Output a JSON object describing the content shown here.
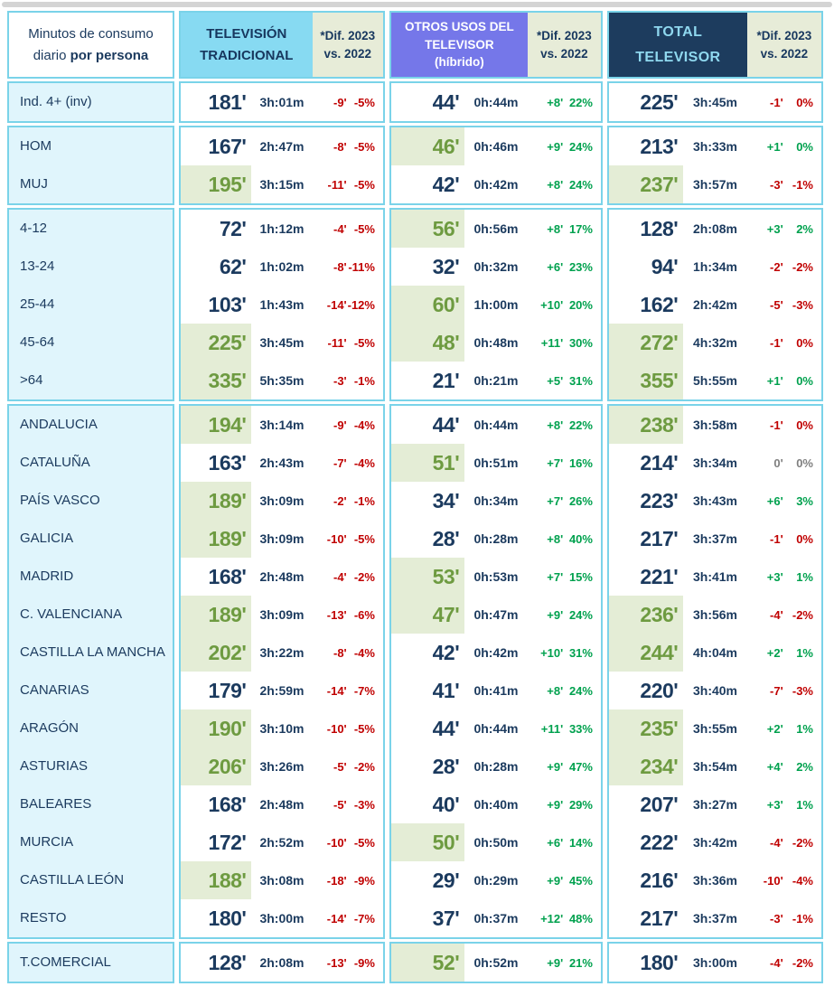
{
  "colors": {
    "border": "#7AD3E9",
    "tv_header_bg": "#87DAF2",
    "otros_header_bg": "#7577E9",
    "total_header_bg": "#1D3C5E",
    "total_header_text": "#8FD8EF",
    "dif_header_bg": "#E7ECD8",
    "label_column_bg": "#E0F5FC",
    "highlight_bg": "#E4EDD6",
    "highlight_text": "#6E9B41",
    "navy_text": "#1B3A5E",
    "negative": "#C00000",
    "positive": "#00A14E",
    "neutral": "#7F7F7F"
  },
  "header": {
    "label_line1": "Minutos de consumo",
    "label_line2_normal": "diario",
    "label_line2_bold": "por persona",
    "tv_line1": "TELEVISIÓN",
    "tv_line2": "TRADICIONAL",
    "otros_line1": "OTROS USOS DEL",
    "otros_line2": "TELEVISOR",
    "otros_line3": "(híbrido)",
    "total_line1": "TOTAL",
    "total_line2": "TELEVISOR",
    "dif_line1": "*Dif. 2023",
    "dif_line2": "vs. 2022"
  },
  "chart_data": {
    "type": "table",
    "title": "Minutos de consumo diario por persona",
    "columns": [
      "TELEVISIÓN TRADICIONAL",
      "*Dif. 2023 vs. 2022",
      "OTROS USOS DEL TELEVISOR (híbrido)",
      "*Dif. 2023 vs. 2022",
      "TOTAL TELEVISOR",
      "*Dif. 2023 vs. 2022"
    ],
    "row_groups": [
      {
        "rows": [
          {
            "label": "Ind. 4+ (inv)",
            "tv": {
              "min": "181'",
              "time": "3h:01m",
              "dif": "-9'",
              "pct": "-5%",
              "hl": false,
              "trend": "down"
            },
            "otros": {
              "min": "44'",
              "time": "0h:44m",
              "dif": "+8'",
              "pct": "22%",
              "hl": false,
              "trend": "up"
            },
            "total": {
              "min": "225'",
              "time": "3h:45m",
              "dif": "-1'",
              "pct": "0%",
              "hl": false,
              "trend": "down"
            }
          }
        ]
      },
      {
        "rows": [
          {
            "label": "HOM",
            "tv": {
              "min": "167'",
              "time": "2h:47m",
              "dif": "-8'",
              "pct": "-5%",
              "hl": false,
              "trend": "down"
            },
            "otros": {
              "min": "46'",
              "time": "0h:46m",
              "dif": "+9'",
              "pct": "24%",
              "hl": true,
              "trend": "up"
            },
            "total": {
              "min": "213'",
              "time": "3h:33m",
              "dif": "+1'",
              "pct": "0%",
              "hl": false,
              "trend": "up"
            }
          },
          {
            "label": "MUJ",
            "tv": {
              "min": "195'",
              "time": "3h:15m",
              "dif": "-11'",
              "pct": "-5%",
              "hl": true,
              "trend": "down"
            },
            "otros": {
              "min": "42'",
              "time": "0h:42m",
              "dif": "+8'",
              "pct": "24%",
              "hl": false,
              "trend": "up"
            },
            "total": {
              "min": "237'",
              "time": "3h:57m",
              "dif": "-3'",
              "pct": "-1%",
              "hl": true,
              "trend": "down"
            }
          }
        ]
      },
      {
        "rows": [
          {
            "label": "4-12",
            "tv": {
              "min": "72'",
              "time": "1h:12m",
              "dif": "-4'",
              "pct": "-5%",
              "hl": false,
              "trend": "down"
            },
            "otros": {
              "min": "56'",
              "time": "0h:56m",
              "dif": "+8'",
              "pct": "17%",
              "hl": true,
              "trend": "up"
            },
            "total": {
              "min": "128'",
              "time": "2h:08m",
              "dif": "+3'",
              "pct": "2%",
              "hl": false,
              "trend": "up"
            }
          },
          {
            "label": "13-24",
            "tv": {
              "min": "62'",
              "time": "1h:02m",
              "dif": "-8'",
              "pct": "-11%",
              "hl": false,
              "trend": "down"
            },
            "otros": {
              "min": "32'",
              "time": "0h:32m",
              "dif": "+6'",
              "pct": "23%",
              "hl": false,
              "trend": "up"
            },
            "total": {
              "min": "94'",
              "time": "1h:34m",
              "dif": "-2'",
              "pct": "-2%",
              "hl": false,
              "trend": "down"
            }
          },
          {
            "label": "25-44",
            "tv": {
              "min": "103'",
              "time": "1h:43m",
              "dif": "-14'",
              "pct": "-12%",
              "hl": false,
              "trend": "down"
            },
            "otros": {
              "min": "60'",
              "time": "1h:00m",
              "dif": "+10'",
              "pct": "20%",
              "hl": true,
              "trend": "up"
            },
            "total": {
              "min": "162'",
              "time": "2h:42m",
              "dif": "-5'",
              "pct": "-3%",
              "hl": false,
              "trend": "down"
            }
          },
          {
            "label": "45-64",
            "tv": {
              "min": "225'",
              "time": "3h:45m",
              "dif": "-11'",
              "pct": "-5%",
              "hl": true,
              "trend": "down"
            },
            "otros": {
              "min": "48'",
              "time": "0h:48m",
              "dif": "+11'",
              "pct": "30%",
              "hl": true,
              "trend": "up"
            },
            "total": {
              "min": "272'",
              "time": "4h:32m",
              "dif": "-1'",
              "pct": "0%",
              "hl": true,
              "trend": "down"
            }
          },
          {
            "label": ">64",
            "tv": {
              "min": "335'",
              "time": "5h:35m",
              "dif": "-3'",
              "pct": "-1%",
              "hl": true,
              "trend": "down"
            },
            "otros": {
              "min": "21'",
              "time": "0h:21m",
              "dif": "+5'",
              "pct": "31%",
              "hl": false,
              "trend": "up"
            },
            "total": {
              "min": "355'",
              "time": "5h:55m",
              "dif": "+1'",
              "pct": "0%",
              "hl": true,
              "trend": "up"
            }
          }
        ]
      },
      {
        "rows": [
          {
            "label": "ANDALUCIA",
            "tv": {
              "min": "194'",
              "time": "3h:14m",
              "dif": "-9'",
              "pct": "-4%",
              "hl": true,
              "trend": "down"
            },
            "otros": {
              "min": "44'",
              "time": "0h:44m",
              "dif": "+8'",
              "pct": "22%",
              "hl": false,
              "trend": "up"
            },
            "total": {
              "min": "238'",
              "time": "3h:58m",
              "dif": "-1'",
              "pct": "0%",
              "hl": true,
              "trend": "down"
            }
          },
          {
            "label": "CATALUÑA",
            "tv": {
              "min": "163'",
              "time": "2h:43m",
              "dif": "-7'",
              "pct": "-4%",
              "hl": false,
              "trend": "down"
            },
            "otros": {
              "min": "51'",
              "time": "0h:51m",
              "dif": "+7'",
              "pct": "16%",
              "hl": true,
              "trend": "up"
            },
            "total": {
              "min": "214'",
              "time": "3h:34m",
              "dif": "0'",
              "pct": "0%",
              "hl": false,
              "trend": "flat"
            }
          },
          {
            "label": "PAÍS VASCO",
            "tv": {
              "min": "189'",
              "time": "3h:09m",
              "dif": "-2'",
              "pct": "-1%",
              "hl": true,
              "trend": "down"
            },
            "otros": {
              "min": "34'",
              "time": "0h:34m",
              "dif": "+7'",
              "pct": "26%",
              "hl": false,
              "trend": "up"
            },
            "total": {
              "min": "223'",
              "time": "3h:43m",
              "dif": "+6'",
              "pct": "3%",
              "hl": false,
              "trend": "up"
            }
          },
          {
            "label": "GALICIA",
            "tv": {
              "min": "189'",
              "time": "3h:09m",
              "dif": "-10'",
              "pct": "-5%",
              "hl": true,
              "trend": "down"
            },
            "otros": {
              "min": "28'",
              "time": "0h:28m",
              "dif": "+8'",
              "pct": "40%",
              "hl": false,
              "trend": "up"
            },
            "total": {
              "min": "217'",
              "time": "3h:37m",
              "dif": "-1'",
              "pct": "0%",
              "hl": false,
              "trend": "down"
            }
          },
          {
            "label": "MADRID",
            "tv": {
              "min": "168'",
              "time": "2h:48m",
              "dif": "-4'",
              "pct": "-2%",
              "hl": false,
              "trend": "down"
            },
            "otros": {
              "min": "53'",
              "time": "0h:53m",
              "dif": "+7'",
              "pct": "15%",
              "hl": true,
              "trend": "up"
            },
            "total": {
              "min": "221'",
              "time": "3h:41m",
              "dif": "+3'",
              "pct": "1%",
              "hl": false,
              "trend": "up"
            }
          },
          {
            "label": "C. VALENCIANA",
            "tv": {
              "min": "189'",
              "time": "3h:09m",
              "dif": "-13'",
              "pct": "-6%",
              "hl": true,
              "trend": "down"
            },
            "otros": {
              "min": "47'",
              "time": "0h:47m",
              "dif": "+9'",
              "pct": "24%",
              "hl": true,
              "trend": "up"
            },
            "total": {
              "min": "236'",
              "time": "3h:56m",
              "dif": "-4'",
              "pct": "-2%",
              "hl": true,
              "trend": "down"
            }
          },
          {
            "label": "CASTILLA LA MANCHA",
            "tv": {
              "min": "202'",
              "time": "3h:22m",
              "dif": "-8'",
              "pct": "-4%",
              "hl": true,
              "trend": "down"
            },
            "otros": {
              "min": "42'",
              "time": "0h:42m",
              "dif": "+10'",
              "pct": "31%",
              "hl": false,
              "trend": "up"
            },
            "total": {
              "min": "244'",
              "time": "4h:04m",
              "dif": "+2'",
              "pct": "1%",
              "hl": true,
              "trend": "up"
            }
          },
          {
            "label": "CANARIAS",
            "tv": {
              "min": "179'",
              "time": "2h:59m",
              "dif": "-14'",
              "pct": "-7%",
              "hl": false,
              "trend": "down"
            },
            "otros": {
              "min": "41'",
              "time": "0h:41m",
              "dif": "+8'",
              "pct": "24%",
              "hl": false,
              "trend": "up"
            },
            "total": {
              "min": "220'",
              "time": "3h:40m",
              "dif": "-7'",
              "pct": "-3%",
              "hl": false,
              "trend": "down"
            }
          },
          {
            "label": "ARAGÓN",
            "tv": {
              "min": "190'",
              "time": "3h:10m",
              "dif": "-10'",
              "pct": "-5%",
              "hl": true,
              "trend": "down"
            },
            "otros": {
              "min": "44'",
              "time": "0h:44m",
              "dif": "+11'",
              "pct": "33%",
              "hl": false,
              "trend": "up"
            },
            "total": {
              "min": "235'",
              "time": "3h:55m",
              "dif": "+2'",
              "pct": "1%",
              "hl": true,
              "trend": "up"
            }
          },
          {
            "label": "ASTURIAS",
            "tv": {
              "min": "206'",
              "time": "3h:26m",
              "dif": "-5'",
              "pct": "-2%",
              "hl": true,
              "trend": "down"
            },
            "otros": {
              "min": "28'",
              "time": "0h:28m",
              "dif": "+9'",
              "pct": "47%",
              "hl": false,
              "trend": "up"
            },
            "total": {
              "min": "234'",
              "time": "3h:54m",
              "dif": "+4'",
              "pct": "2%",
              "hl": true,
              "trend": "up"
            }
          },
          {
            "label": "BALEARES",
            "tv": {
              "min": "168'",
              "time": "2h:48m",
              "dif": "-5'",
              "pct": "-3%",
              "hl": false,
              "trend": "down"
            },
            "otros": {
              "min": "40'",
              "time": "0h:40m",
              "dif": "+9'",
              "pct": "29%",
              "hl": false,
              "trend": "up"
            },
            "total": {
              "min": "207'",
              "time": "3h:27m",
              "dif": "+3'",
              "pct": "1%",
              "hl": false,
              "trend": "up"
            }
          },
          {
            "label": "MURCIA",
            "tv": {
              "min": "172'",
              "time": "2h:52m",
              "dif": "-10'",
              "pct": "-5%",
              "hl": false,
              "trend": "down"
            },
            "otros": {
              "min": "50'",
              "time": "0h:50m",
              "dif": "+6'",
              "pct": "14%",
              "hl": true,
              "trend": "up"
            },
            "total": {
              "min": "222'",
              "time": "3h:42m",
              "dif": "-4'",
              "pct": "-2%",
              "hl": false,
              "trend": "down"
            }
          },
          {
            "label": "CASTILLA LEÓN",
            "tv": {
              "min": "188'",
              "time": "3h:08m",
              "dif": "-18'",
              "pct": "-9%",
              "hl": true,
              "trend": "down"
            },
            "otros": {
              "min": "29'",
              "time": "0h:29m",
              "dif": "+9'",
              "pct": "45%",
              "hl": false,
              "trend": "up"
            },
            "total": {
              "min": "216'",
              "time": "3h:36m",
              "dif": "-10'",
              "pct": "-4%",
              "hl": false,
              "trend": "down"
            }
          },
          {
            "label": "RESTO",
            "tv": {
              "min": "180'",
              "time": "3h:00m",
              "dif": "-14'",
              "pct": "-7%",
              "hl": false,
              "trend": "down"
            },
            "otros": {
              "min": "37'",
              "time": "0h:37m",
              "dif": "+12'",
              "pct": "48%",
              "hl": false,
              "trend": "up"
            },
            "total": {
              "min": "217'",
              "time": "3h:37m",
              "dif": "-3'",
              "pct": "-1%",
              "hl": false,
              "trend": "down"
            }
          }
        ]
      },
      {
        "rows": [
          {
            "label": "T.COMERCIAL",
            "tv": {
              "min": "128'",
              "time": "2h:08m",
              "dif": "-13'",
              "pct": "-9%",
              "hl": false,
              "trend": "down"
            },
            "otros": {
              "min": "52'",
              "time": "0h:52m",
              "dif": "+9'",
              "pct": "21%",
              "hl": true,
              "trend": "up"
            },
            "total": {
              "min": "180'",
              "time": "3h:00m",
              "dif": "-4'",
              "pct": "-2%",
              "hl": false,
              "trend": "down"
            }
          }
        ]
      }
    ]
  }
}
